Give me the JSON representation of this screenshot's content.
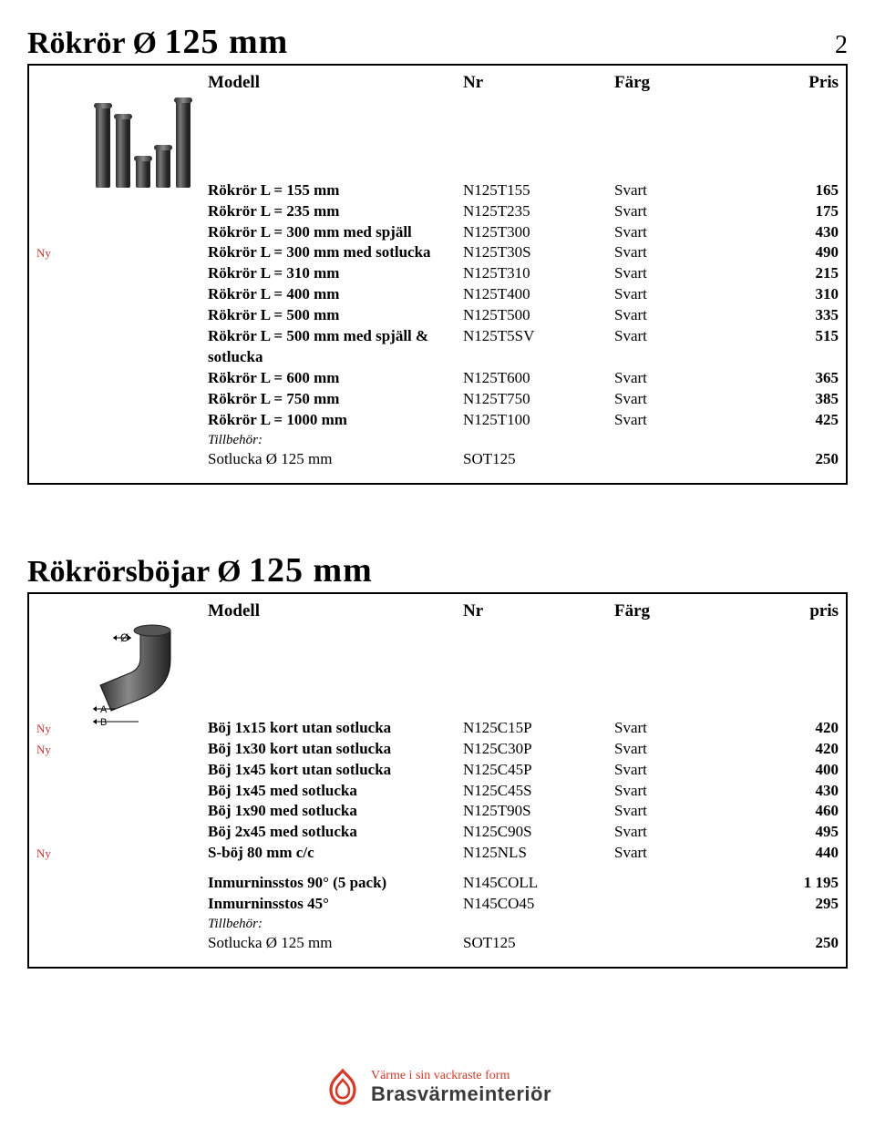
{
  "page": {
    "number": "2"
  },
  "sectionA": {
    "title_pre": "Rökrör Ø ",
    "title_diam": "125 mm",
    "headers": {
      "modell": "Modell",
      "nr": "Nr",
      "farg": "Färg",
      "pris": "Pris"
    },
    "ny_label": "Ny",
    "rows": [
      {
        "ny": false,
        "modell": "Rökrör L = 155 mm",
        "nr": "N125T155",
        "farg": "Svart",
        "pris": "165"
      },
      {
        "ny": false,
        "modell": "Rökrör L = 235 mm",
        "nr": "N125T235",
        "farg": "Svart",
        "pris": "175"
      },
      {
        "ny": false,
        "modell": "Rökrör L = 300 mm med spjäll",
        "nr": "N125T300",
        "farg": "Svart",
        "pris": "430"
      },
      {
        "ny": true,
        "modell": "Rökrör L = 300 mm med sotlucka",
        "nr": "N125T30S",
        "farg": "Svart",
        "pris": "490"
      },
      {
        "ny": false,
        "modell": "Rökrör L = 310 mm",
        "nr": "N125T310",
        "farg": "Svart",
        "pris": "215"
      },
      {
        "ny": false,
        "modell": "Rökrör L = 400 mm",
        "nr": "N125T400",
        "farg": "Svart",
        "pris": "310"
      },
      {
        "ny": false,
        "modell": "Rökrör L = 500 mm",
        "nr": "N125T500",
        "farg": "Svart",
        "pris": "335"
      },
      {
        "ny": false,
        "modell": "Rökrör L = 500 mm med spjäll & sotlucka",
        "nr": "N125T5SV",
        "farg": "Svart",
        "pris": "515"
      },
      {
        "ny": false,
        "modell": "Rökrör L = 600 mm",
        "nr": "N125T600",
        "farg": "Svart",
        "pris": "365"
      },
      {
        "ny": false,
        "modell": "Rökrör L = 750 mm",
        "nr": "N125T750",
        "farg": "Svart",
        "pris": "385"
      },
      {
        "ny": false,
        "modell": "Rökrör L = 1000 mm",
        "nr": "N125T100",
        "farg": "Svart",
        "pris": "425"
      }
    ],
    "tillbehor_label": "Tillbehör:",
    "tillbehor": [
      {
        "modell": "Sotlucka Ø 125 mm",
        "nr": "SOT125",
        "farg": "",
        "pris": "250"
      }
    ]
  },
  "sectionB": {
    "title_pre": "Rökrörsböjar Ø ",
    "title_diam": "125 mm",
    "headers": {
      "modell": "Modell",
      "nr": "Nr",
      "farg": "Färg",
      "pris": "pris"
    },
    "ny_label": "Ny",
    "rows": [
      {
        "ny": true,
        "modell": "Böj 1x15 kort utan sotlucka",
        "nr": "N125C15P",
        "farg": "Svart",
        "pris": "420"
      },
      {
        "ny": true,
        "modell": "Böj 1x30 kort utan sotlucka",
        "nr": "N125C30P",
        "farg": "Svart",
        "pris": "420"
      },
      {
        "ny": false,
        "modell": "Böj 1x45 kort utan sotlucka",
        "nr": "N125C45P",
        "farg": "Svart",
        "pris": "400"
      },
      {
        "ny": false,
        "modell": "Böj 1x45 med sotlucka",
        "nr": "N125C45S",
        "farg": "Svart",
        "pris": "430"
      },
      {
        "ny": false,
        "modell": "Böj 1x90 med sotlucka",
        "nr": "N125T90S",
        "farg": "Svart",
        "pris": "460"
      },
      {
        "ny": false,
        "modell": "Böj 2x45 med sotlucka",
        "nr": "N125C90S",
        "farg": "Svart",
        "pris": "495"
      },
      {
        "ny": true,
        "modell": "S-böj 80 mm c/c",
        "nr": "N125NLS",
        "farg": "Svart",
        "pris": "440"
      }
    ],
    "extra": [
      {
        "modell": "Inmurninsstos 90° (5 pack)",
        "nr": "N145COLL",
        "farg": "",
        "pris": "1 195"
      },
      {
        "modell": "Inmurninsstos 45°",
        "nr": "N145CO45",
        "farg": "",
        "pris": "295"
      }
    ],
    "tillbehor_label": "Tillbehör:",
    "tillbehor": [
      {
        "modell": "Sotlucka Ø 125 mm",
        "nr": "SOT125",
        "farg": "",
        "pris": "250"
      }
    ]
  },
  "brand": {
    "tagline": "Värme i sin vackraste form",
    "name": "Brasvärmeinteriör"
  }
}
